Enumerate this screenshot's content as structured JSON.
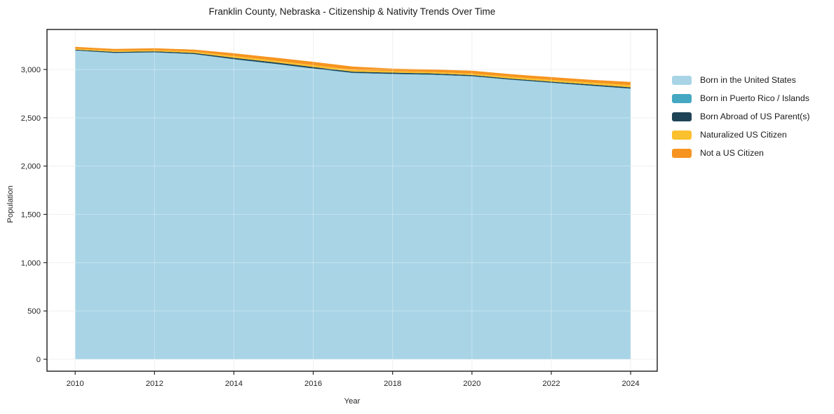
{
  "chart_data": {
    "type": "area",
    "stacked": true,
    "title": "Franklin County, Nebraska - Citizenship & Nativity Trends Over Time",
    "xlabel": "Year",
    "ylabel": "Population",
    "x": [
      2010,
      2011,
      2012,
      2013,
      2014,
      2015,
      2016,
      2017,
      2018,
      2019,
      2020,
      2021,
      2022,
      2023,
      2024
    ],
    "series": [
      {
        "name": "Born in the United States",
        "color": "#a8d4e6",
        "values": [
          3195,
          3170,
          3176,
          3158,
          3104,
          3058,
          3008,
          2962,
          2952,
          2944,
          2928,
          2892,
          2861,
          2830,
          2800
        ]
      },
      {
        "name": "Born in Puerto Rico / Islands",
        "color": "#44a8c2",
        "values": [
          2,
          2,
          2,
          2,
          3,
          3,
          3,
          3,
          3,
          3,
          3,
          3,
          3,
          3,
          3
        ]
      },
      {
        "name": "Born Abroad of US Parent(s)",
        "color": "#1e4356",
        "values": [
          8,
          10,
          10,
          11,
          14,
          14,
          14,
          12,
          12,
          12,
          11,
          10,
          10,
          12,
          12
        ]
      },
      {
        "name": "Naturalized US Citizen",
        "color": "#fbc02d",
        "values": [
          10,
          12,
          12,
          13,
          18,
          18,
          20,
          18,
          16,
          15,
          15,
          18,
          18,
          20,
          22
        ]
      },
      {
        "name": "Not a US Citizen",
        "color": "#f6941f",
        "values": [
          19,
          18,
          20,
          21,
          29,
          31,
          34,
          35,
          26,
          26,
          30,
          28,
          29,
          28,
          34
        ]
      }
    ],
    "x_ticks": [
      2010,
      2012,
      2014,
      2016,
      2018,
      2020,
      2022,
      2024
    ],
    "y_ticks": [
      0,
      500,
      1000,
      1500,
      2000,
      2500,
      3000
    ],
    "xlim": [
      2009.29,
      2024.67
    ],
    "ylim": [
      -123.5,
      3414
    ],
    "grid": true,
    "legend_position": "right",
    "grid_color": "#eaeaea",
    "axis_color": "#1a1a1a"
  }
}
